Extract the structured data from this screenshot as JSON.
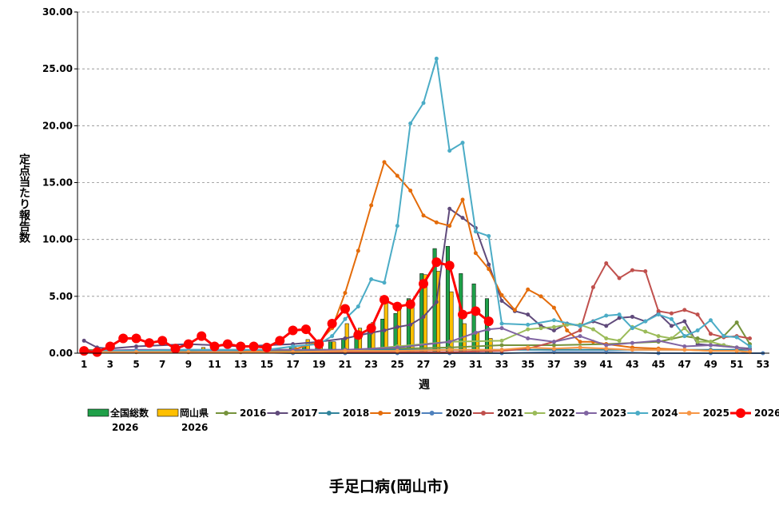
{
  "chart_data": {
    "type": "line",
    "title": "手足口病(岡山市)",
    "xlabel": "週",
    "ylabel": "定点当たり報告数",
    "ylim": [
      0,
      30
    ],
    "yticks": [
      "0.00",
      "5.00",
      "10.00",
      "15.00",
      "20.00",
      "25.00",
      "30.00"
    ],
    "xlim": [
      1,
      53
    ],
    "xticks": [
      "1",
      "3",
      "5",
      "7",
      "9",
      "11",
      "13",
      "15",
      "17",
      "19",
      "21",
      "23",
      "25",
      "27",
      "29",
      "31",
      "33",
      "35",
      "37",
      "39",
      "41",
      "43",
      "45",
      "47",
      "49",
      "51",
      "53"
    ],
    "grid": "horizontal-dashed",
    "legend_position": "bottom",
    "bar_series": [
      {
        "name": "全国総数\n2026",
        "color": "#1fa049",
        "x": [
          1,
          2,
          3,
          4,
          5,
          6,
          7,
          8,
          9,
          10,
          11,
          12,
          13,
          14,
          15,
          16,
          17,
          18,
          19,
          20,
          21,
          22,
          23,
          24,
          25,
          26,
          27,
          28,
          29,
          30,
          31,
          32
        ],
        "values": [
          0.15,
          0.15,
          0.2,
          0.2,
          0.2,
          0.2,
          0.2,
          0.2,
          0.25,
          0.25,
          0.2,
          0.25,
          0.25,
          0.25,
          0.3,
          0.4,
          0.6,
          0.7,
          0.8,
          1.0,
          1.3,
          1.9,
          2.4,
          3.0,
          3.5,
          4.8,
          7.0,
          9.2,
          9.4,
          7.0,
          6.1,
          4.8
        ]
      },
      {
        "name": "岡山県\n2026",
        "color": "#ffc000",
        "x": [
          1,
          2,
          3,
          4,
          5,
          6,
          7,
          8,
          9,
          10,
          11,
          12,
          13,
          14,
          15,
          16,
          17,
          18,
          19,
          20,
          21,
          22,
          23,
          24,
          25,
          26,
          27,
          28,
          29,
          30,
          31,
          32
        ],
        "values": [
          0.1,
          0.1,
          0.15,
          0.2,
          0.2,
          0.15,
          0.2,
          0.15,
          0.2,
          0.5,
          0.2,
          0.2,
          0.2,
          0.2,
          0.2,
          0.3,
          0.5,
          1.2,
          1.1,
          1.0,
          2.6,
          2.2,
          2.7,
          4.7,
          4.1,
          4.3,
          6.9,
          7.2,
          5.4,
          2.6,
          1.9,
          1.3
        ]
      }
    ],
    "series": [
      {
        "name": "2016",
        "color": "#76933c",
        "x": [
          1,
          5,
          9,
          13,
          17,
          21,
          25,
          29,
          33,
          37,
          41,
          45,
          47,
          48,
          49,
          50,
          51,
          52
        ],
        "values": [
          0.3,
          0.2,
          0.2,
          0.2,
          0.2,
          0.3,
          0.4,
          0.5,
          0.7,
          0.7,
          0.8,
          1.0,
          1.5,
          1.3,
          1.0,
          1.5,
          2.7,
          0.8
        ]
      },
      {
        "name": "2017",
        "color": "#604a7b",
        "x": [
          1,
          2,
          3,
          5,
          9,
          13,
          17,
          19,
          21,
          23,
          24,
          25,
          26,
          27,
          28,
          29,
          30,
          31,
          32,
          33,
          34,
          35,
          36,
          37,
          38,
          39,
          40,
          41,
          42,
          43,
          44,
          45,
          46,
          47,
          48,
          49,
          50,
          51,
          52
        ],
        "values": [
          1.1,
          0.5,
          0.4,
          0.6,
          0.8,
          0.6,
          0.8,
          1.0,
          1.3,
          1.8,
          2.0,
          2.3,
          2.5,
          3.2,
          4.5,
          12.7,
          11.9,
          11.0,
          7.8,
          4.6,
          3.7,
          3.4,
          2.4,
          2.0,
          2.6,
          2.4,
          2.8,
          2.4,
          3.1,
          3.2,
          2.8,
          3.5,
          2.4,
          2.8,
          0.8,
          0.7,
          0.7,
          0.5,
          0.4
        ]
      },
      {
        "name": "2018",
        "color": "#31849b",
        "x": [
          1,
          5,
          9,
          13,
          17,
          21,
          25,
          29,
          33,
          37,
          41,
          45,
          49,
          52
        ],
        "values": [
          0.2,
          0.2,
          0.2,
          0.2,
          0.3,
          0.3,
          0.3,
          0.3,
          0.3,
          0.3,
          0.3,
          0.3,
          0.3,
          0.3
        ]
      },
      {
        "name": "2019",
        "color": "#e46c0a",
        "x": [
          1,
          5,
          9,
          13,
          15,
          17,
          19,
          20,
          21,
          22,
          23,
          24,
          25,
          26,
          27,
          28,
          29,
          30,
          31,
          32,
          33,
          34,
          35,
          36,
          37,
          38,
          39,
          40,
          41,
          43,
          45,
          47,
          49,
          51,
          52
        ],
        "values": [
          0.1,
          0.1,
          0.1,
          0.1,
          0.3,
          0.3,
          1.0,
          2.2,
          5.3,
          9.0,
          13.0,
          16.8,
          15.6,
          14.3,
          12.1,
          11.5,
          11.2,
          13.5,
          8.8,
          7.4,
          5.1,
          3.8,
          5.6,
          5.0,
          4.0,
          2.0,
          1.0,
          1.0,
          0.8,
          0.5,
          0.4,
          0.3,
          0.2,
          0.2,
          0.1
        ]
      },
      {
        "name": "2020",
        "color": "#4f81bd",
        "x": [
          1,
          5,
          9,
          13,
          17,
          21,
          25,
          29,
          33,
          37,
          41,
          45,
          49,
          53
        ],
        "values": [
          0.2,
          0.2,
          0.3,
          0.1,
          0.0,
          0.0,
          0.0,
          0.0,
          0.0,
          0.1,
          0.1,
          0.0,
          0.0,
          0.0
        ]
      },
      {
        "name": "2021",
        "color": "#c0504d",
        "x": [
          1,
          5,
          9,
          13,
          17,
          21,
          25,
          29,
          33,
          35,
          37,
          39,
          40,
          41,
          42,
          43,
          44,
          45,
          46,
          47,
          48,
          49,
          50,
          51,
          52
        ],
        "values": [
          0.1,
          0.1,
          0.1,
          0.1,
          0.1,
          0.1,
          0.1,
          0.1,
          0.2,
          0.4,
          1.0,
          2.0,
          5.8,
          7.9,
          6.6,
          7.3,
          7.2,
          3.7,
          3.5,
          3.8,
          3.4,
          1.7,
          1.4,
          1.5,
          1.3
        ]
      },
      {
        "name": "2022",
        "color": "#9bbb59",
        "x": [
          1,
          5,
          9,
          13,
          17,
          21,
          25,
          29,
          33,
          35,
          36,
          37,
          38,
          39,
          40,
          41,
          42,
          43,
          44,
          45,
          46,
          47,
          48,
          49,
          50,
          51,
          52
        ],
        "values": [
          0.1,
          0.1,
          0.1,
          0.1,
          0.1,
          0.2,
          0.6,
          1.0,
          1.1,
          2.1,
          2.2,
          2.3,
          2.5,
          2.5,
          2.1,
          1.3,
          1.1,
          2.3,
          1.9,
          1.5,
          1.3,
          2.2,
          1.0,
          1.0,
          0.7,
          0.5,
          0.3
        ]
      },
      {
        "name": "2023",
        "color": "#8064a2",
        "x": [
          1,
          5,
          9,
          13,
          17,
          21,
          25,
          29,
          31,
          32,
          33,
          35,
          37,
          39,
          41,
          43,
          45,
          47,
          49,
          51,
          52
        ],
        "values": [
          0.2,
          0.3,
          0.3,
          0.3,
          0.3,
          0.3,
          0.5,
          1.0,
          1.8,
          2.1,
          2.2,
          1.3,
          1.0,
          1.5,
          0.7,
          0.9,
          1.1,
          0.6,
          0.7,
          0.5,
          0.3
        ]
      },
      {
        "name": "2024",
        "color": "#4bacc6",
        "x": [
          1,
          5,
          9,
          13,
          15,
          17,
          19,
          20,
          21,
          22,
          23,
          24,
          25,
          26,
          27,
          28,
          29,
          30,
          31,
          32,
          33,
          35,
          37,
          39,
          41,
          42,
          43,
          44,
          45,
          46,
          47,
          48,
          49,
          50,
          51,
          52
        ],
        "values": [
          0.2,
          0.2,
          0.3,
          0.3,
          0.3,
          0.6,
          0.8,
          1.5,
          3.0,
          4.1,
          6.5,
          6.2,
          11.2,
          20.2,
          22.0,
          25.9,
          17.8,
          18.5,
          10.7,
          10.3,
          2.6,
          2.5,
          2.9,
          2.4,
          3.3,
          3.4,
          2.2,
          2.8,
          3.4,
          3.0,
          1.5,
          2.0,
          2.9,
          1.5,
          1.4,
          0.6
        ]
      },
      {
        "name": "2025",
        "color": "#f79646",
        "x": [
          1,
          5,
          9,
          13,
          17,
          21,
          25,
          29,
          33,
          35,
          37,
          39,
          41,
          43,
          45,
          47,
          49,
          51,
          52
        ],
        "values": [
          0.1,
          0.1,
          0.1,
          0.1,
          0.1,
          0.2,
          0.2,
          0.3,
          0.3,
          0.5,
          0.4,
          0.5,
          0.4,
          0.3,
          0.3,
          0.3,
          0.2,
          0.2,
          0.1
        ]
      },
      {
        "name": "2026",
        "color": "#ff0000",
        "bold": true,
        "x": [
          1,
          2,
          3,
          4,
          5,
          6,
          7,
          8,
          9,
          10,
          11,
          12,
          13,
          14,
          15,
          16,
          17,
          18,
          19,
          20,
          21,
          22,
          23,
          24,
          25,
          26,
          27,
          28,
          29,
          30,
          31,
          32
        ],
        "values": [
          0.2,
          0.1,
          0.6,
          1.3,
          1.3,
          0.9,
          1.1,
          0.4,
          0.8,
          1.5,
          0.6,
          0.8,
          0.6,
          0.6,
          0.5,
          1.1,
          2.0,
          2.1,
          0.8,
          2.6,
          3.9,
          1.6,
          2.2,
          4.7,
          4.1,
          4.3,
          6.1,
          8.0,
          7.7,
          3.4,
          3.7,
          2.8
        ]
      }
    ]
  }
}
